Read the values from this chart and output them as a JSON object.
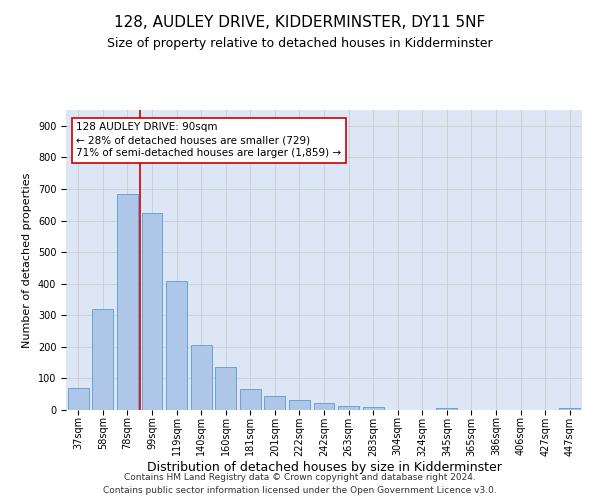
{
  "title_line1": "128, AUDLEY DRIVE, KIDDERMINSTER, DY11 5NF",
  "title_line2": "Size of property relative to detached houses in Kidderminster",
  "xlabel": "Distribution of detached houses by size in Kidderminster",
  "ylabel": "Number of detached properties",
  "footnote": "Contains HM Land Registry data © Crown copyright and database right 2024.\nContains public sector information licensed under the Open Government Licence v3.0.",
  "bar_labels": [
    "37sqm",
    "58sqm",
    "78sqm",
    "99sqm",
    "119sqm",
    "140sqm",
    "160sqm",
    "181sqm",
    "201sqm",
    "222sqm",
    "242sqm",
    "263sqm",
    "283sqm",
    "304sqm",
    "324sqm",
    "345sqm",
    "365sqm",
    "386sqm",
    "406sqm",
    "427sqm",
    "447sqm"
  ],
  "bar_values": [
    70,
    320,
    685,
    625,
    410,
    207,
    135,
    67,
    45,
    32,
    22,
    12,
    10,
    0,
    0,
    7,
    0,
    0,
    0,
    0,
    7
  ],
  "bar_color": "#aec6e8",
  "bar_edge_color": "#5b9bd5",
  "vline_color": "#cc0000",
  "annotation_text": "128 AUDLEY DRIVE: 90sqm\n← 28% of detached houses are smaller (729)\n71% of semi-detached houses are larger (1,859) →",
  "annotation_box_color": "#ffffff",
  "annotation_box_edge": "#cc0000",
  "ylim": [
    0,
    950
  ],
  "yticks": [
    0,
    100,
    200,
    300,
    400,
    500,
    600,
    700,
    800,
    900
  ],
  "grid_color": "#cccccc",
  "background_color": "#dce6f5",
  "title1_fontsize": 11,
  "title2_fontsize": 9,
  "xlabel_fontsize": 9,
  "ylabel_fontsize": 8,
  "tick_fontsize": 7,
  "footnote_fontsize": 6.5
}
